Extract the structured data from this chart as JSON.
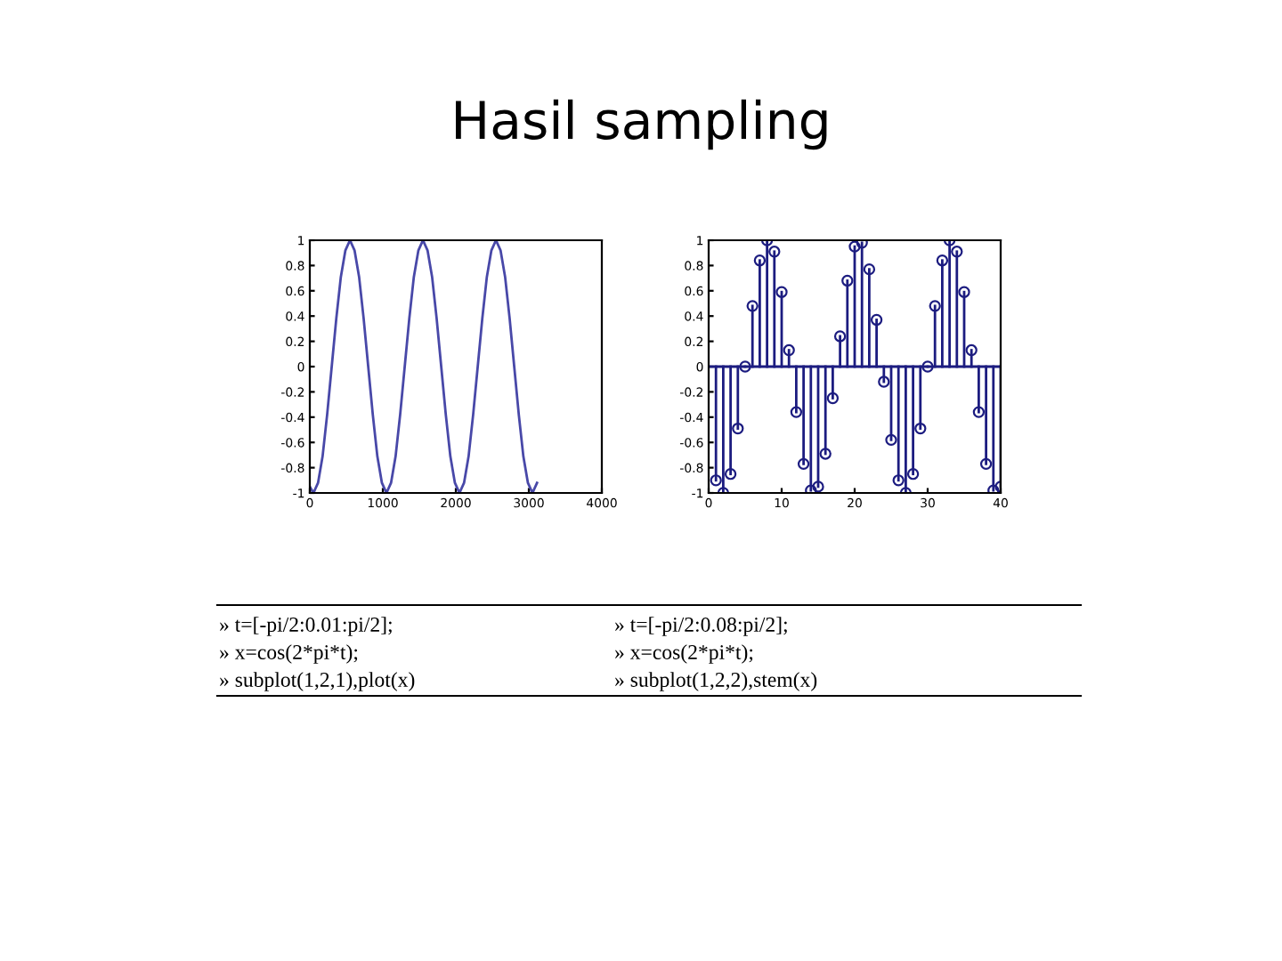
{
  "chart_data": [
    {
      "type": "line",
      "title": "Hasil sampling",
      "color": "#4848a8",
      "x": [
        0,
        50,
        112.5,
        175,
        237.5,
        300,
        362.5,
        425,
        487.5,
        550,
        612.5,
        675,
        737.5,
        800,
        862.5,
        925,
        987.5,
        1050,
        1112.5,
        1175,
        1237.5,
        1300,
        1362.5,
        1425,
        1487.5,
        1550,
        1612.5,
        1675,
        1737.5,
        1800,
        1862.5,
        1925,
        1987.5,
        2050,
        2112.5,
        2175,
        2237.5,
        2300,
        2362.5,
        2425,
        2487.5,
        2550,
        2612.5,
        2675,
        2737.5,
        2800,
        2862.5,
        2925,
        2987.5,
        3050,
        3112.5
      ],
      "values": [
        -0.95,
        -1,
        -0.92,
        -0.71,
        -0.38,
        0,
        0.38,
        0.71,
        0.92,
        1,
        0.92,
        0.71,
        0.38,
        0,
        -0.38,
        -0.71,
        -0.92,
        -1,
        -0.92,
        -0.71,
        -0.38,
        0,
        0.38,
        0.71,
        0.92,
        1,
        0.92,
        0.71,
        0.38,
        0,
        -0.38,
        -0.71,
        -0.92,
        -1,
        -0.92,
        -0.71,
        -0.38,
        0,
        0.38,
        0.71,
        0.92,
        1,
        0.92,
        0.71,
        0.38,
        0,
        -0.38,
        -0.71,
        -0.92,
        -1,
        -0.92
      ],
      "xlim": [
        0,
        4000
      ],
      "xticks": [
        0,
        1000,
        2000,
        3000,
        4000
      ],
      "ylim": [
        -1,
        1
      ],
      "yticks": [
        -1,
        -0.8,
        -0.6,
        -0.4,
        -0.2,
        0,
        0.2,
        0.4,
        0.6,
        0.8,
        1
      ],
      "annotations": [
        "» t=[-pi/2:0.01:pi/2];",
        "» x=cos(2*pi*t);",
        "» subplot(1,2,1),plot(x)"
      ]
    },
    {
      "type": "lollipop",
      "color": "#1c1c80",
      "marker": "circle",
      "x": [
        1,
        2,
        3,
        4,
        5,
        6,
        7,
        8,
        9,
        10,
        11,
        12,
        13,
        14,
        15,
        16,
        17,
        18,
        19,
        20,
        21,
        22,
        23,
        24,
        25,
        26,
        27,
        28,
        29,
        30,
        31,
        32,
        33,
        34,
        35,
        36,
        37,
        38,
        39,
        40
      ],
      "values": [
        -0.9,
        -1,
        -0.85,
        -0.49,
        0,
        0.48,
        0.84,
        1,
        0.91,
        0.59,
        0.13,
        -0.36,
        -0.77,
        -0.98,
        -0.95,
        -0.69,
        -0.25,
        0.24,
        0.68,
        0.95,
        0.98,
        0.77,
        0.37,
        -0.12,
        -0.58,
        -0.9,
        -1,
        -0.85,
        -0.49,
        0,
        0.48,
        0.84,
        1,
        0.91,
        0.59,
        0.13,
        -0.36,
        -0.77,
        -0.98,
        -0.95
      ],
      "xlim": [
        0,
        40
      ],
      "xticks": [
        0,
        10,
        20,
        30,
        40
      ],
      "ylim": [
        -1,
        1
      ],
      "yticks": [
        -1,
        -0.8,
        -0.6,
        -0.4,
        -0.2,
        0,
        0.2,
        0.4,
        0.6,
        0.8,
        1
      ],
      "ref_lines": [
        {
          "axis": "y",
          "value": 0,
          "color": "#1c1c80"
        }
      ],
      "annotations": [
        "» t=[-pi/2:0.08:pi/2];",
        "» x=cos(2*pi*t);",
        "» subplot(1,2,2),stem(x)"
      ]
    }
  ]
}
